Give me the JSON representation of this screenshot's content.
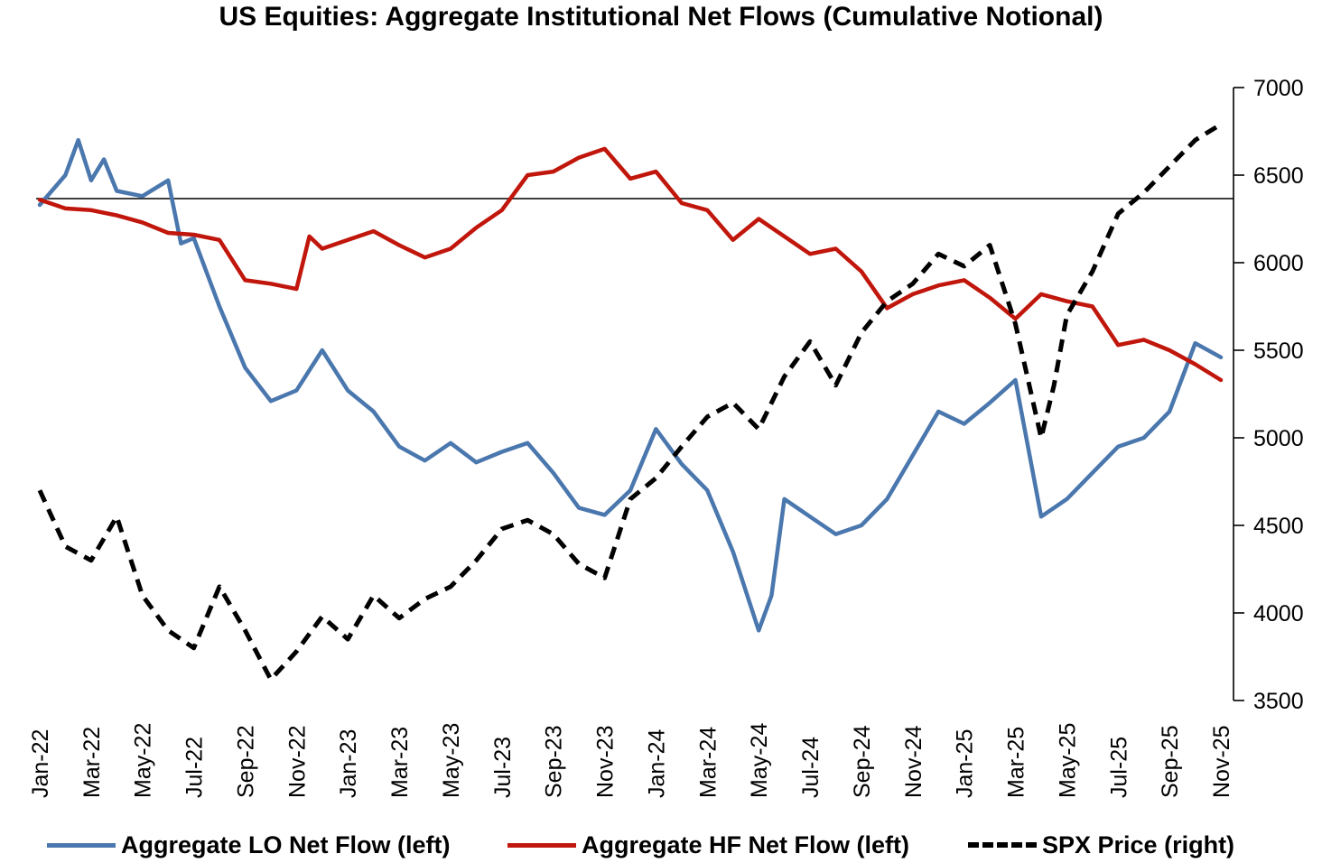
{
  "chart_data": {
    "type": "line",
    "title": "US Equities: Aggregate Institutional Net Flows (Cumulative Notional)",
    "x": [
      "Jan-22",
      "Mar-22",
      "May-22",
      "Jul-22",
      "Sep-22",
      "Nov-22",
      "Jan-23",
      "Mar-23",
      "May-23",
      "Jul-23",
      "Sep-23",
      "Nov-23",
      "Jan-24",
      "Mar-24",
      "May-24",
      "Jul-24",
      "Sep-24",
      "Nov-24",
      "Jan-25",
      "Mar-25",
      "May-25",
      "Jul-25",
      "Sep-25",
      "Nov-25"
    ],
    "right_axis": {
      "label": "",
      "ylim": [
        3500,
        7000
      ],
      "ticks": [
        3500,
        4000,
        4500,
        5000,
        5500,
        6000,
        6500,
        7000
      ]
    },
    "left_axis": {
      "label": "",
      "ticks_visible": false,
      "reference_line": "zero"
    },
    "series": [
      {
        "name": "Aggregate LO Net Flow (left)",
        "axis": "left",
        "color": "#4a77ad",
        "style": "solid",
        "unit": "approx SPX-scale equivalent",
        "points": [
          [
            "Jan-22",
            6330
          ],
          [
            "Feb-22",
            6500
          ],
          [
            "Feb-22b",
            6700
          ],
          [
            "Mar-22",
            6470
          ],
          [
            "Mar-22b",
            6590
          ],
          [
            "Apr-22",
            6410
          ],
          [
            "May-22",
            6380
          ],
          [
            "Jun-22",
            6470
          ],
          [
            "Jun-22b",
            6110
          ],
          [
            "Jul-22",
            6140
          ],
          [
            "Aug-22",
            5750
          ],
          [
            "Sep-22",
            5400
          ],
          [
            "Oct-22",
            5210
          ],
          [
            "Nov-22",
            5270
          ],
          [
            "Dec-22",
            5500
          ],
          [
            "Jan-23",
            5270
          ],
          [
            "Feb-23",
            5150
          ],
          [
            "Mar-23",
            4950
          ],
          [
            "Apr-23",
            4870
          ],
          [
            "May-23",
            4970
          ],
          [
            "Jun-23",
            4860
          ],
          [
            "Jul-23",
            4920
          ],
          [
            "Aug-23",
            4970
          ],
          [
            "Sep-23",
            4800
          ],
          [
            "Oct-23",
            4600
          ],
          [
            "Nov-23",
            4560
          ],
          [
            "Dec-23",
            4700
          ],
          [
            "Jan-24",
            5050
          ],
          [
            "Feb-24",
            4850
          ],
          [
            "Mar-24",
            4700
          ],
          [
            "Apr-24",
            4350
          ],
          [
            "May-24",
            3900
          ],
          [
            "May-24b",
            4100
          ],
          [
            "Jun-24",
            4650
          ],
          [
            "Jul-24",
            4550
          ],
          [
            "Aug-24",
            4450
          ],
          [
            "Sep-24",
            4500
          ],
          [
            "Oct-24",
            4650
          ],
          [
            "Nov-24",
            4900
          ],
          [
            "Dec-24",
            5150
          ],
          [
            "Jan-25",
            5080
          ],
          [
            "Feb-25",
            5200
          ],
          [
            "Mar-25",
            5330
          ],
          [
            "Apr-25",
            4550
          ],
          [
            "May-25",
            4650
          ],
          [
            "Jun-25",
            4800
          ],
          [
            "Jul-25",
            4950
          ],
          [
            "Aug-25",
            5000
          ],
          [
            "Sep-25",
            5150
          ],
          [
            "Oct-25",
            5540
          ],
          [
            "Nov-25",
            5460
          ]
        ]
      },
      {
        "name": "Aggregate HF Net Flow (left)",
        "axis": "left",
        "color": "#c0160c",
        "style": "solid",
        "unit": "approx SPX-scale equivalent",
        "points": [
          [
            "Jan-22",
            6360
          ],
          [
            "Feb-22",
            6310
          ],
          [
            "Mar-22",
            6300
          ],
          [
            "Apr-22",
            6270
          ],
          [
            "May-22",
            6230
          ],
          [
            "Jun-22",
            6170
          ],
          [
            "Jul-22",
            6160
          ],
          [
            "Aug-22",
            6130
          ],
          [
            "Sep-22",
            5900
          ],
          [
            "Oct-22",
            5880
          ],
          [
            "Nov-22",
            5850
          ],
          [
            "Nov-22b",
            6150
          ],
          [
            "Dec-22",
            6080
          ],
          [
            "Jan-23",
            6130
          ],
          [
            "Feb-23",
            6180
          ],
          [
            "Mar-23",
            6100
          ],
          [
            "Apr-23",
            6030
          ],
          [
            "May-23",
            6080
          ],
          [
            "Jun-23",
            6200
          ],
          [
            "Jul-23",
            6300
          ],
          [
            "Aug-23",
            6500
          ],
          [
            "Sep-23",
            6520
          ],
          [
            "Oct-23",
            6600
          ],
          [
            "Nov-23",
            6650
          ],
          [
            "Dec-23",
            6480
          ],
          [
            "Jan-24",
            6520
          ],
          [
            "Feb-24",
            6340
          ],
          [
            "Mar-24",
            6300
          ],
          [
            "Apr-24",
            6130
          ],
          [
            "May-24",
            6250
          ],
          [
            "Jun-24",
            6150
          ],
          [
            "Jul-24",
            6050
          ],
          [
            "Aug-24",
            6080
          ],
          [
            "Sep-24",
            5950
          ],
          [
            "Oct-24",
            5740
          ],
          [
            "Nov-24",
            5820
          ],
          [
            "Dec-24",
            5870
          ],
          [
            "Jan-25",
            5900
          ],
          [
            "Feb-25",
            5800
          ],
          [
            "Mar-25",
            5680
          ],
          [
            "Apr-25",
            5820
          ],
          [
            "May-25",
            5780
          ],
          [
            "Jun-25",
            5750
          ],
          [
            "Jul-25",
            5530
          ],
          [
            "Aug-25",
            5560
          ],
          [
            "Sep-25",
            5500
          ],
          [
            "Oct-25",
            5420
          ],
          [
            "Nov-25",
            5330
          ]
        ]
      },
      {
        "name": "SPX Price (right)",
        "axis": "right",
        "color": "#000000",
        "style": "dashed",
        "points": [
          [
            "Jan-22",
            4700
          ],
          [
            "Feb-22",
            4380
          ],
          [
            "Mar-22",
            4300
          ],
          [
            "Apr-22",
            4550
          ],
          [
            "May-22",
            4100
          ],
          [
            "Jun-22",
            3900
          ],
          [
            "Jul-22",
            3800
          ],
          [
            "Aug-22",
            4150
          ],
          [
            "Sep-22",
            3900
          ],
          [
            "Oct-22",
            3620
          ],
          [
            "Nov-22",
            3780
          ],
          [
            "Dec-22",
            3980
          ],
          [
            "Jan-23",
            3850
          ],
          [
            "Feb-23",
            4100
          ],
          [
            "Mar-23",
            3970
          ],
          [
            "Apr-23",
            4080
          ],
          [
            "May-23",
            4150
          ],
          [
            "Jun-23",
            4300
          ],
          [
            "Jul-23",
            4480
          ],
          [
            "Aug-23",
            4530
          ],
          [
            "Sep-23",
            4450
          ],
          [
            "Oct-23",
            4280
          ],
          [
            "Nov-23",
            4200
          ],
          [
            "Dec-23",
            4650
          ],
          [
            "Jan-24",
            4770
          ],
          [
            "Feb-24",
            4950
          ],
          [
            "Mar-24",
            5120
          ],
          [
            "Apr-24",
            5200
          ],
          [
            "May-24",
            5050
          ],
          [
            "Jun-24",
            5350
          ],
          [
            "Jul-24",
            5550
          ],
          [
            "Aug-24",
            5300
          ],
          [
            "Sep-24",
            5600
          ],
          [
            "Oct-24",
            5780
          ],
          [
            "Nov-24",
            5880
          ],
          [
            "Dec-24",
            6050
          ],
          [
            "Jan-25",
            5980
          ],
          [
            "Feb-25",
            6100
          ],
          [
            "Mar-25",
            5650
          ],
          [
            "Apr-25",
            5000
          ],
          [
            "Apr-25b",
            5300
          ],
          [
            "May-25",
            5700
          ],
          [
            "Jun-25",
            5950
          ],
          [
            "Jul-25",
            6280
          ],
          [
            "Aug-25",
            6400
          ],
          [
            "Sep-25",
            6550
          ],
          [
            "Oct-25",
            6700
          ],
          [
            "Nov-25",
            6790
          ]
        ]
      }
    ],
    "legend": [
      "Aggregate LO Net Flow (left)",
      "Aggregate HF Net Flow (left)",
      "SPX Price (right)"
    ],
    "legend_position": "bottom",
    "grid": false
  }
}
